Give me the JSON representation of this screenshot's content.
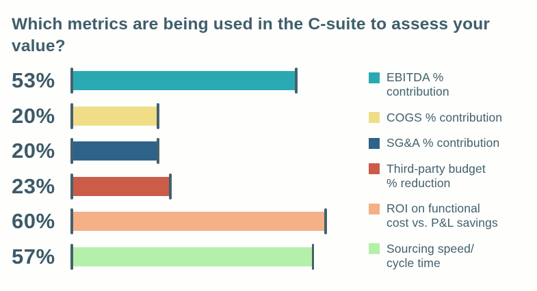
{
  "title": "Which metrics are being used in the C-suite to assess your value?",
  "colors": {
    "text": "#3F5E6B",
    "tick": "#44616D",
    "background": "#FEFEFD"
  },
  "chart_data": {
    "type": "bar",
    "orientation": "horizontal",
    "title": "Which metrics are being used in the C-suite to assess your value?",
    "categories": [
      "EBITDA % contribution",
      "COGS % contribution",
      "SG&A % contribution",
      "Third-party budget % reduction",
      "ROI on functional cost vs. P&L savings",
      "Sourcing speed/ cycle time"
    ],
    "values": [
      53,
      20,
      20,
      23,
      60,
      57
    ],
    "value_labels": [
      "53%",
      "20%",
      "20%",
      "23%",
      "60%",
      "57%"
    ],
    "bar_colors": [
      "#2AA9B3",
      "#EFDE87",
      "#2F6288",
      "#CB5C48",
      "#F4B087",
      "#B5F0AA"
    ],
    "xlabel": "",
    "ylabel": "",
    "xlim": [
      0,
      65
    ],
    "grid": false,
    "legend_position": "right"
  },
  "legend": {
    "items": [
      {
        "label": "EBITDA %\ncontribution",
        "color": "#2AA9B3"
      },
      {
        "label": "COGS % contribution",
        "color": "#EFDE87"
      },
      {
        "label": "SG&A % contribution",
        "color": "#2F6288"
      },
      {
        "label": "Third-party budget\n% reduction",
        "color": "#CB5C48"
      },
      {
        "label": "ROI on functional\ncost vs. P&L savings",
        "color": "#F4B087"
      },
      {
        "label": "Sourcing speed/\ncycle time",
        "color": "#B5F0AA"
      }
    ]
  }
}
